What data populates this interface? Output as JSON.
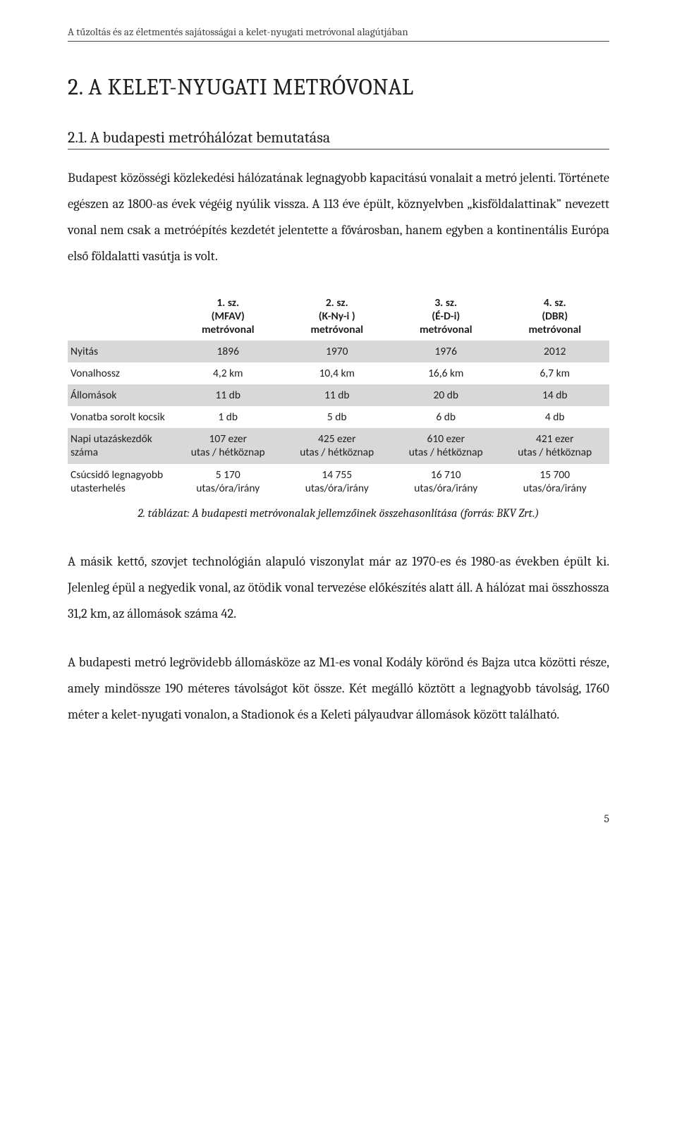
{
  "header": {
    "running_title": "A tűzoltás és az életmentés sajátosságai a kelet-nyugati metróvonal alagútjában"
  },
  "section": {
    "title": "2. A KELET-NYUGATI METRÓVONAL",
    "subsection_title": "2.1. A budapesti metróhálózat bemutatása",
    "para1": "Budapest közösségi közlekedési hálózatának legnagyobb kapacitású vonalait a metró jelenti. Története egészen az 1800-as évek végéig nyúlik vissza. A 113 éve épült, köznyelvben „kisföldalattinak” nevezett vonal nem csak a metróépítés kezdetét jelentette a fővárosban, hanem egyben a kontinentális Európa első földalatti vasútja is volt.",
    "para2": "A másik kettő, szovjet technológián alapuló viszonylat már az 1970-es és 1980-as években épült ki. Jelenleg épül a negyedik vonal, az ötödik vonal tervezése előkészítés alatt áll. A hálózat mai összhossza 31,2 km, az állomások száma 42.",
    "para3": "A budapesti metró legrövidebb állomásköze az M1-es vonal Kodály körönd és Bajza utca közötti része, amely mindössze 190 méteres távolságot köt össze. Két megálló köztött a legnagyobb távolság, 1760 méter a kelet-nyugati vonalon, a Stadionok és a Keleti pályaudvar állomások között található."
  },
  "table": {
    "caption": "2. táblázat: A budapesti metróvonalak jellemzőinek összehasonlítása (forrás: BKV Zrt.)",
    "colors": {
      "row_shade": "#d8d8d8",
      "row_plain": "#ffffff",
      "text": "#1d1d1d"
    },
    "columns": [
      {
        "l1": "1. sz.",
        "l2": "(MFAV)",
        "l3": "metróvonal"
      },
      {
        "l1": "2. sz.",
        "l2": "(K-Ny-i )",
        "l3": "metróvonal"
      },
      {
        "l1": "3. sz.",
        "l2": "(É-D-i)",
        "l3": "metróvonal"
      },
      {
        "l1": "4. sz.",
        "l2": "(DBR)",
        "l3": "metróvonal"
      }
    ],
    "rows": [
      {
        "label": "Nyitás",
        "shaded": true,
        "multiline": false,
        "cells": [
          "1896",
          "1970",
          "1976",
          "2012"
        ]
      },
      {
        "label": "Vonalhossz",
        "shaded": false,
        "multiline": false,
        "cells": [
          "4,2 km",
          "10,4 km",
          "16,6 km",
          "6,7 km"
        ]
      },
      {
        "label": "Állomások",
        "shaded": true,
        "multiline": false,
        "cells": [
          "11 db",
          "11 db",
          "20 db",
          "14 db"
        ]
      },
      {
        "label": "Vonatba sorolt kocsik",
        "shaded": false,
        "multiline": false,
        "cells": [
          "1 db",
          "5 db",
          "6 db",
          "4 db"
        ]
      },
      {
        "label": "Napi utazáskezdők száma",
        "shaded": true,
        "multiline": true,
        "cells": [
          [
            "107 ezer",
            "utas / hétköznap"
          ],
          [
            "425 ezer",
            "utas / hétköznap"
          ],
          [
            "610 ezer",
            "utas / hétköznap"
          ],
          [
            "421 ezer",
            "utas / hétköznap"
          ]
        ]
      },
      {
        "label": "Csúcsidő legnagyobb utasterhelés",
        "shaded": false,
        "multiline": true,
        "cells": [
          [
            "5 170",
            "utas/óra/irány"
          ],
          [
            "14 755",
            "utas/óra/irány"
          ],
          [
            "16 710",
            "utas/óra/irány"
          ],
          [
            "15 700",
            "utas/óra/irány"
          ]
        ]
      }
    ]
  },
  "page_number": "5"
}
